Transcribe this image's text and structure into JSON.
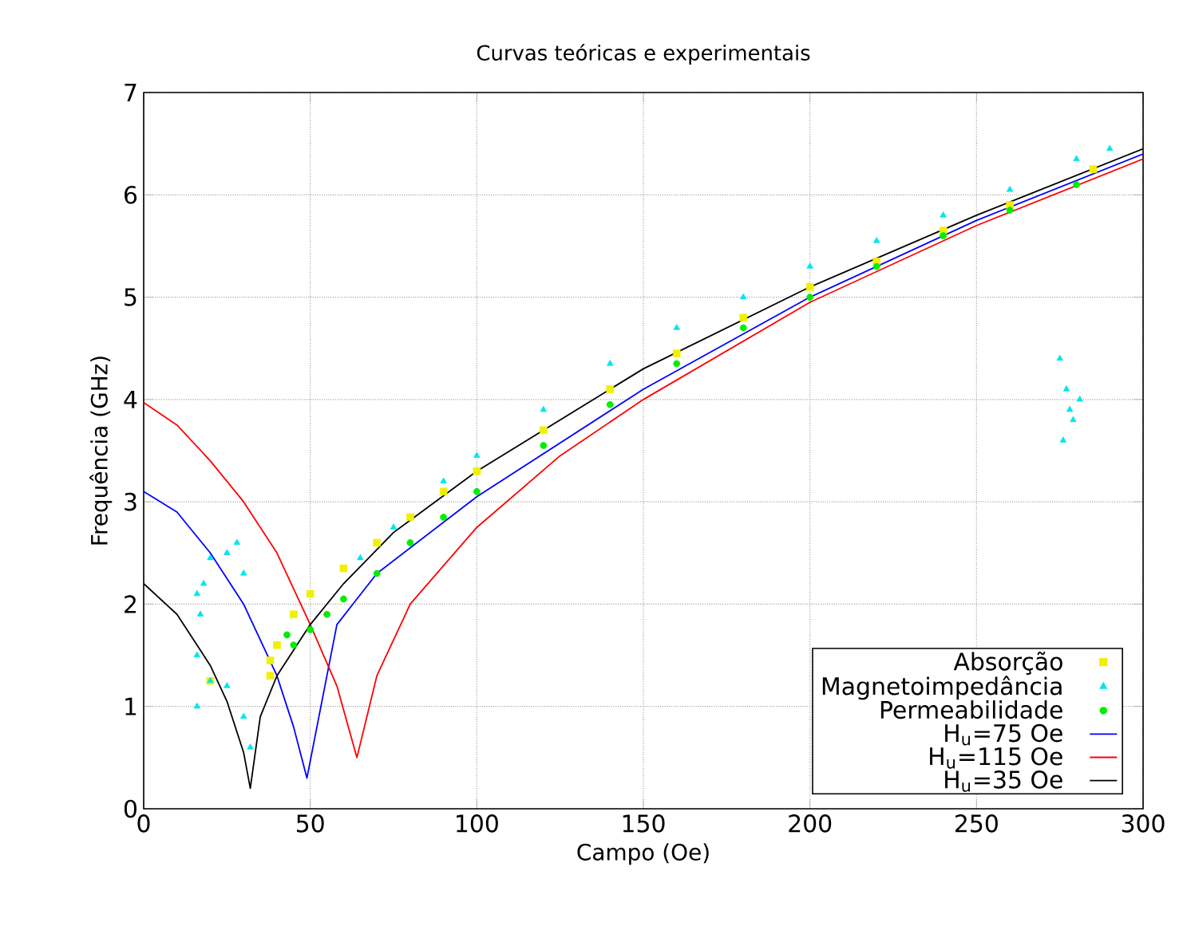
{
  "chart_data": {
    "type": "scatter",
    "title": "Curvas teóricas e experimentais",
    "xlabel": "Campo (Oe)",
    "ylabel": "Frequência (GHz)",
    "xlim": [
      0,
      300
    ],
    "ylim": [
      0,
      7
    ],
    "xticks": [
      0,
      50,
      100,
      150,
      200,
      250,
      300
    ],
    "yticks": [
      0,
      1,
      2,
      3,
      4,
      5,
      6,
      7
    ],
    "grid": true,
    "legend": "bottom right",
    "series": [
      {
        "name": "Absorção",
        "marker": "square",
        "color": "#f0f000",
        "x": [
          20,
          38,
          38,
          40,
          45,
          50,
          60,
          70,
          80,
          90,
          100,
          120,
          140,
          160,
          180,
          200,
          220,
          240,
          260,
          285
        ],
        "values": [
          1.25,
          1.3,
          1.45,
          1.6,
          1.9,
          2.1,
          2.35,
          2.6,
          2.85,
          3.1,
          3.3,
          3.7,
          4.1,
          4.45,
          4.8,
          5.1,
          5.35,
          5.65,
          5.9,
          6.25
        ]
      },
      {
        "name": "Magnetoimpedância",
        "marker": "triangle",
        "color": "#00e5ee",
        "x": [
          16,
          16,
          16,
          17,
          18,
          20,
          25,
          28,
          30,
          20,
          25,
          30,
          32,
          65,
          75,
          90,
          100,
          120,
          140,
          160,
          180,
          200,
          220,
          240,
          260,
          280,
          290,
          275,
          277,
          279,
          281,
          276,
          278
        ],
        "values": [
          1.0,
          1.5,
          2.1,
          1.9,
          2.2,
          2.45,
          2.5,
          2.6,
          2.3,
          1.25,
          1.2,
          0.9,
          0.6,
          2.45,
          2.75,
          3.2,
          3.45,
          3.9,
          4.35,
          4.7,
          5.0,
          5.3,
          5.55,
          5.8,
          6.05,
          6.35,
          6.45,
          4.4,
          4.1,
          3.8,
          4.0,
          3.6,
          3.9
        ]
      },
      {
        "name": "Permeabilidade",
        "marker": "circle",
        "color": "#00ee00",
        "x": [
          43,
          45,
          50,
          55,
          60,
          70,
          80,
          90,
          100,
          120,
          140,
          160,
          180,
          200,
          220,
          240,
          260,
          280
        ],
        "values": [
          1.7,
          1.6,
          1.75,
          1.9,
          2.05,
          2.3,
          2.6,
          2.85,
          3.1,
          3.55,
          3.95,
          4.35,
          4.7,
          5.0,
          5.3,
          5.6,
          5.85,
          6.1
        ]
      },
      {
        "name": "H$_{u}$=75 Oe",
        "type": "line",
        "marker": "none",
        "color": "#0000ff",
        "x": [
          0,
          10,
          20,
          30,
          40,
          45,
          49,
          52,
          58,
          70,
          100,
          150,
          200,
          250,
          300
        ],
        "values": [
          3.1,
          2.9,
          2.5,
          2.0,
          1.3,
          0.8,
          0.3,
          0.8,
          1.8,
          2.3,
          3.05,
          4.1,
          5.0,
          5.75,
          6.4
        ]
      },
      {
        "name": "H$_{u}$=115 Oe",
        "type": "line",
        "marker": "none",
        "color": "#ff0000",
        "x": [
          0,
          10,
          20,
          30,
          40,
          50,
          58,
          64,
          70,
          80,
          100,
          125,
          150,
          200,
          250,
          300
        ],
        "values": [
          3.97,
          3.75,
          3.4,
          3.0,
          2.5,
          1.8,
          1.2,
          0.5,
          1.3,
          2.0,
          2.75,
          3.45,
          4.0,
          4.95,
          5.7,
          6.35
        ]
      },
      {
        "name": "H$_{u}$=35 Oe",
        "type": "line",
        "marker": "none",
        "color": "#000000",
        "x": [
          0,
          10,
          20,
          25,
          30,
          32,
          35,
          40,
          50,
          60,
          75,
          100,
          150,
          200,
          250,
          300
        ],
        "values": [
          2.2,
          1.9,
          1.4,
          1.05,
          0.55,
          0.2,
          0.9,
          1.3,
          1.8,
          2.2,
          2.7,
          3.3,
          4.3,
          5.1,
          5.8,
          6.45
        ]
      }
    ]
  }
}
